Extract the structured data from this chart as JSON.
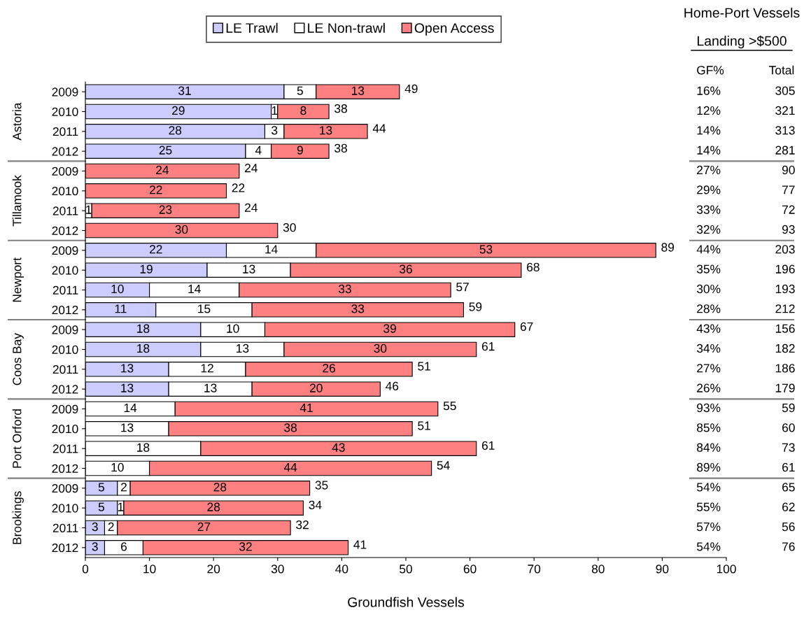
{
  "chart_data": [
    {
      "type": "bar",
      "orientation": "horizontal",
      "stacked": true,
      "xlabel": "Groundfish Vessels",
      "legend": "top",
      "grid": false,
      "data_labels": true,
      "categories": [
        "2009",
        "2010",
        "2011",
        "2012",
        "2009",
        "2010",
        "2011",
        "2012",
        "2009",
        "2010",
        "2011",
        "2012",
        "2009",
        "2010",
        "2011",
        "2012",
        "2009",
        "2010",
        "2011",
        "2012",
        "2009",
        "2010",
        "2011",
        "2012"
      ],
      "annotations": [
        "Astoria",
        "Tillamook",
        "Newport",
        "Coos Bay",
        "Port Orford",
        "Brookings"
      ],
      "xlim": [
        0,
        100
      ],
      "xticks": [
        0,
        10,
        20,
        30,
        40,
        50,
        60,
        70,
        80,
        90,
        100
      ],
      "series": [
        {
          "name": "LE Trawl",
          "color": "#ccccff",
          "values": [
            31,
            29,
            28,
            25,
            null,
            null,
            null,
            null,
            22,
            19,
            10,
            11,
            18,
            18,
            13,
            13,
            null,
            null,
            null,
            null,
            5,
            5,
            3,
            3
          ]
        },
        {
          "name": "LE Non-trawl",
          "color": "#ffffff",
          "values": [
            5,
            1,
            3,
            4,
            null,
            null,
            1,
            null,
            14,
            13,
            14,
            15,
            10,
            13,
            12,
            13,
            14,
            13,
            18,
            10,
            2,
            1,
            2,
            6
          ]
        },
        {
          "name": "Open Access",
          "color": "#ff8080",
          "values": [
            13,
            8,
            13,
            9,
            24,
            22,
            23,
            30,
            53,
            36,
            33,
            33,
            39,
            30,
            26,
            20,
            41,
            38,
            43,
            44,
            28,
            28,
            27,
            32
          ]
        }
      ],
      "totals": [
        "49",
        "38",
        "44",
        "38",
        "24",
        "22",
        "24",
        "30",
        "89",
        "68",
        "57",
        "59",
        "67",
        "61",
        "51",
        "46",
        "55",
        "51",
        "61",
        "54",
        "35",
        "34",
        "32",
        "41"
      ]
    },
    {
      "type": "other",
      "title": "Home-Port Vessels",
      "subtitle": "Landing >$500",
      "categories": [
        "GF%",
        "Total"
      ],
      "cell_labels": [
        [
          "16%",
          "305"
        ],
        [
          "12%",
          "321"
        ],
        [
          "14%",
          "313"
        ],
        [
          "14%",
          "281"
        ],
        [
          "27%",
          "90"
        ],
        [
          "29%",
          "77"
        ],
        [
          "33%",
          "72"
        ],
        [
          "32%",
          "93"
        ],
        [
          "44%",
          "203"
        ],
        [
          "35%",
          "196"
        ],
        [
          "30%",
          "193"
        ],
        [
          "28%",
          "212"
        ],
        [
          "43%",
          "156"
        ],
        [
          "34%",
          "182"
        ],
        [
          "27%",
          "186"
        ],
        [
          "26%",
          "179"
        ],
        [
          "93%",
          "59"
        ],
        [
          "85%",
          "60"
        ],
        [
          "84%",
          "73"
        ],
        [
          "89%",
          "61"
        ],
        [
          "54%",
          "65"
        ],
        [
          "55%",
          "62"
        ],
        [
          "57%",
          "56"
        ],
        [
          "54%",
          "76"
        ]
      ]
    }
  ]
}
